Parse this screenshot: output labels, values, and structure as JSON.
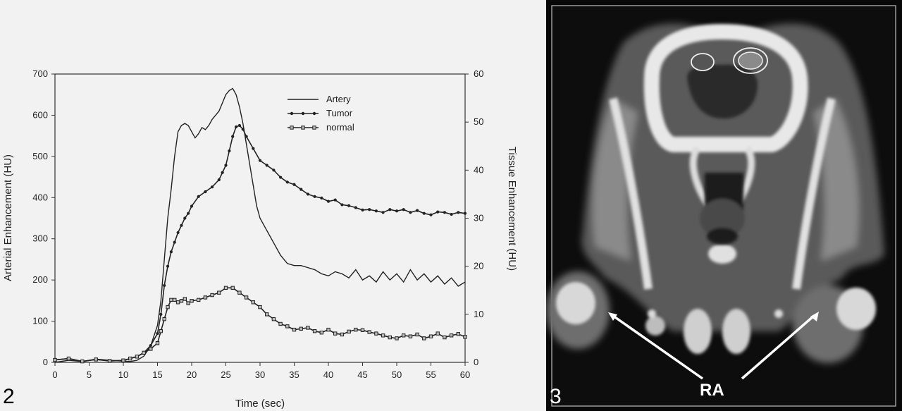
{
  "figures": {
    "fig2_number": "2",
    "fig3_number": "3",
    "fig3_label": "RA"
  },
  "chart_data": {
    "type": "line",
    "title": "",
    "xlabel": "Time (sec)",
    "ylabel_left": "Arterial Enhancement (HU)",
    "ylabel_right": "Tissue Enhancement (HU)",
    "xlim": [
      0,
      60
    ],
    "ylim_left": [
      0,
      700
    ],
    "ylim_right": [
      0,
      60
    ],
    "x_ticks": [
      0,
      5,
      10,
      15,
      20,
      25,
      30,
      35,
      40,
      45,
      50,
      55,
      60
    ],
    "y_left_ticks": [
      0,
      100,
      200,
      300,
      400,
      500,
      600,
      700
    ],
    "y_right_ticks": [
      0,
      10,
      20,
      30,
      40,
      50,
      60
    ],
    "grid": false,
    "legend_position": "top-center",
    "series": [
      {
        "name": "Artery",
        "axis": "left",
        "marker": "none",
        "color": "#222222",
        "x": [
          0,
          2,
          4,
          6,
          8,
          10,
          11,
          12,
          13,
          14,
          15,
          15.5,
          16,
          16.5,
          17,
          17.5,
          18,
          18.5,
          19,
          19.5,
          20,
          20.5,
          21,
          21.5,
          22,
          22.5,
          23,
          23.5,
          24,
          24.5,
          25,
          25.5,
          26,
          26.5,
          27,
          27.5,
          28,
          28.5,
          29,
          29.5,
          30,
          31,
          32,
          33,
          34,
          35,
          36,
          37,
          38,
          39,
          40,
          41,
          42,
          43,
          44,
          45,
          46,
          47,
          48,
          49,
          50,
          51,
          52,
          53,
          54,
          55,
          56,
          57,
          58,
          59,
          60
        ],
        "y": [
          0,
          5,
          2,
          8,
          5,
          3,
          2,
          5,
          15,
          40,
          90,
          150,
          250,
          350,
          420,
          500,
          560,
          575,
          580,
          575,
          560,
          545,
          555,
          570,
          565,
          575,
          590,
          600,
          610,
          630,
          650,
          660,
          665,
          650,
          620,
          580,
          530,
          480,
          430,
          380,
          350,
          320,
          290,
          260,
          240,
          235,
          235,
          230,
          225,
          215,
          210,
          220,
          215,
          205,
          225,
          200,
          210,
          195,
          220,
          200,
          215,
          195,
          225,
          200,
          215,
          195,
          210,
          190,
          205,
          185,
          195
        ]
      },
      {
        "name": "Tumor",
        "axis": "right",
        "marker": "dot",
        "color": "#222222",
        "x": [
          0,
          2,
          4,
          6,
          8,
          10,
          11,
          12,
          13,
          14,
          15,
          15.5,
          16,
          16.5,
          17,
          17.5,
          18,
          18.5,
          19,
          19.5,
          20,
          21,
          22,
          23,
          24,
          24.5,
          25,
          25.5,
          26,
          26.5,
          27,
          27.5,
          28,
          29,
          30,
          31,
          32,
          33,
          34,
          35,
          36,
          37,
          38,
          39,
          40,
          41,
          42,
          43,
          44,
          45,
          46,
          47,
          48,
          49,
          50,
          51,
          52,
          53,
          54,
          55,
          56,
          57,
          58,
          59,
          60
        ],
        "y": [
          0.5,
          0.8,
          0.2,
          0.6,
          0.3,
          0.4,
          0.8,
          1.2,
          2,
          3.5,
          6,
          10,
          16,
          20,
          23,
          25,
          27,
          28.5,
          30,
          31,
          32.5,
          34.5,
          35.5,
          36.5,
          38,
          39.5,
          41,
          44,
          47,
          49,
          49.3,
          48.5,
          47,
          44.5,
          42,
          41,
          40,
          38.5,
          37.5,
          37,
          36,
          35,
          34.5,
          34.2,
          33.5,
          33.8,
          32.8,
          32.6,
          32.2,
          31.7,
          31.8,
          31.5,
          31.2,
          31.8,
          31.5,
          31.8,
          31.2,
          31.6,
          31,
          30.7,
          31.3,
          31.2,
          30.8,
          31.2,
          31
        ]
      },
      {
        "name": "normal",
        "axis": "right",
        "marker": "square",
        "color": "#222222",
        "x": [
          0,
          2,
          4,
          6,
          8,
          10,
          11,
          12,
          13,
          14,
          15,
          15.5,
          16,
          16.5,
          17,
          17.5,
          18,
          18.5,
          19,
          19.5,
          20,
          21,
          22,
          23,
          24,
          25,
          26,
          27,
          28,
          29,
          30,
          31,
          32,
          33,
          34,
          35,
          36,
          37,
          38,
          39,
          40,
          41,
          42,
          43,
          44,
          45,
          46,
          47,
          48,
          49,
          50,
          51,
          52,
          53,
          54,
          55,
          56,
          57,
          58,
          59,
          60
        ],
        "y": [
          0.5,
          0.8,
          0.2,
          0.6,
          0.3,
          0.4,
          0.8,
          1.2,
          2,
          2.8,
          4,
          6.5,
          9,
          11.5,
          13,
          13,
          12.5,
          12.8,
          13.2,
          12.3,
          12.8,
          13,
          13.5,
          14,
          14.5,
          15.5,
          15.5,
          14.5,
          13.5,
          12.5,
          11.5,
          10,
          9,
          8,
          7.5,
          6.8,
          7,
          7.2,
          6.5,
          6.2,
          6.8,
          6,
          5.8,
          6.4,
          6.8,
          6.7,
          6.3,
          6,
          5.6,
          5.2,
          5,
          5.6,
          5.4,
          5.8,
          5,
          5.4,
          6,
          5.2,
          5.6,
          5.9,
          5.3
        ]
      }
    ]
  }
}
